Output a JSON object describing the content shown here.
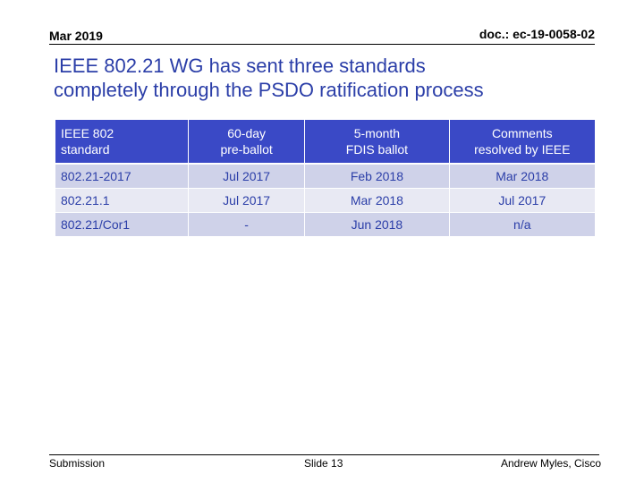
{
  "header": {
    "date": "Mar 2019",
    "doc_id": "doc.: ec-19-0058-02"
  },
  "title": {
    "line1": "IEEE 802.21 WG has sent three standards",
    "line2": "completely through the PSDO ratification process"
  },
  "table": {
    "columns": [
      {
        "line1": "IEEE 802",
        "line2": "standard"
      },
      {
        "line1": "60-day",
        "line2": "pre-ballot"
      },
      {
        "line1": "5-month",
        "line2": "FDIS ballot"
      },
      {
        "line1": "Comments",
        "line2": "resolved by IEEE"
      }
    ],
    "rows": [
      [
        "802.21-2017",
        "Jul 2017",
        "Feb 2018",
        "Mar 2018"
      ],
      [
        "802.21.1",
        "Jul 2017",
        "Mar 2018",
        "Jul 2017"
      ],
      [
        "802.21/Cor1",
        "-",
        "Jun 2018",
        "n/a"
      ]
    ]
  },
  "footer": {
    "left": "Submission",
    "center": "Slide 13",
    "right": "Andrew Myles, Cisco"
  },
  "colors": {
    "title": "#2b3ea8",
    "header_bg": "#3a49c6",
    "row_dark": "#cfd2e9",
    "row_light": "#e8e9f3"
  }
}
